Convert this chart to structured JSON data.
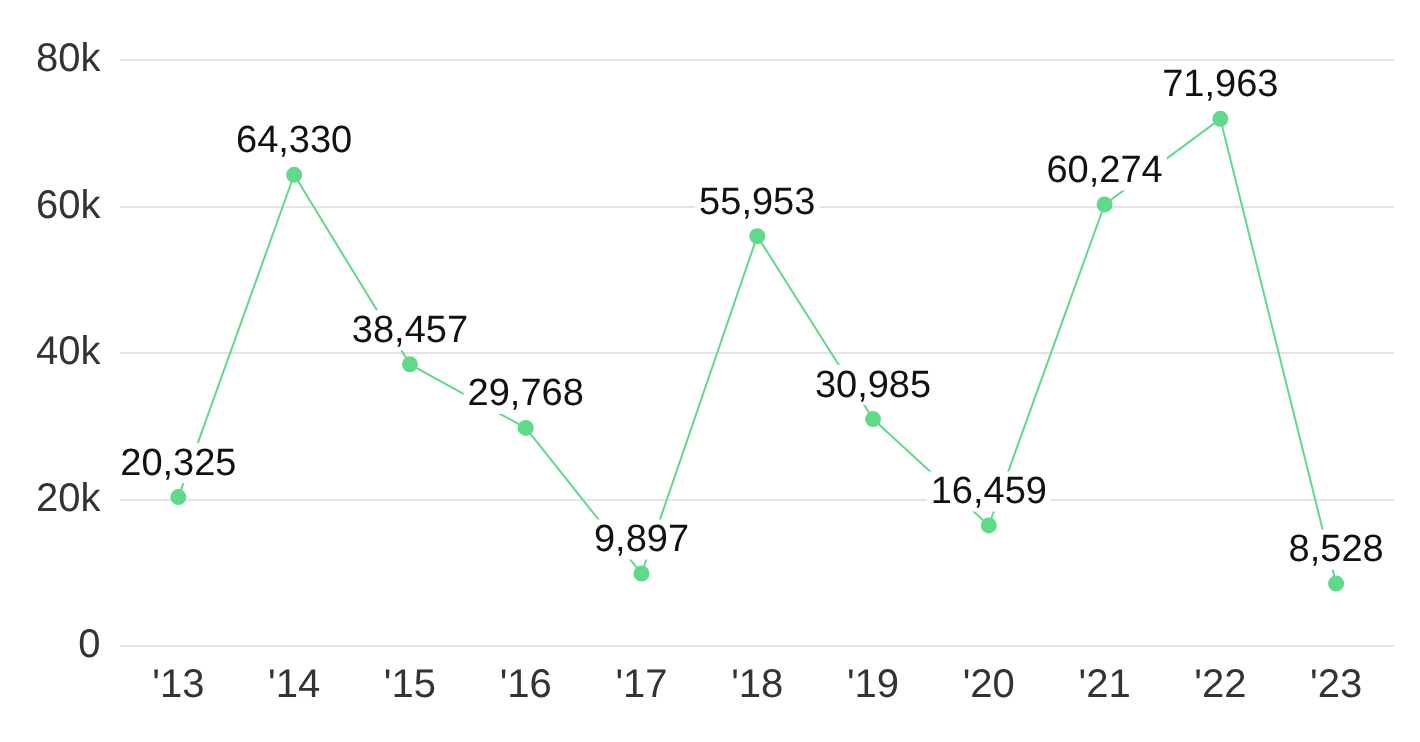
{
  "chart_data": {
    "type": "line",
    "categories": [
      "'13",
      "'14",
      "'15",
      "'16",
      "'17",
      "'18",
      "'19",
      "'20",
      "'21",
      "'22",
      "'23"
    ],
    "series": [
      {
        "color": "#5fd98a",
        "values": [
          20325,
          64330,
          38457,
          29768,
          9897,
          55953,
          30985,
          16459,
          60274,
          71963,
          8528
        ],
        "value_labels": [
          "20,325",
          "64,330",
          "38,457",
          "29,768",
          "9,897",
          "55,953",
          "30,985",
          "16,459",
          "60,274",
          "71,963",
          "8,528"
        ]
      }
    ],
    "ylim": [
      0,
      80000
    ],
    "yticks": [
      {
        "value": 0,
        "label": "0"
      },
      {
        "value": 20000,
        "label": "20k"
      },
      {
        "value": 40000,
        "label": "40k"
      },
      {
        "value": 60000,
        "label": "60k"
      },
      {
        "value": 80000,
        "label": "80k"
      }
    ],
    "grid": "y",
    "legend": false,
    "marker": "circle",
    "line_style": "solid"
  }
}
